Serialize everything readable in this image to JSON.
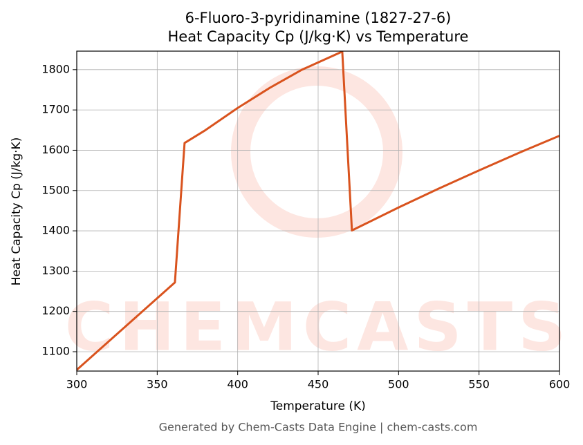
{
  "chart_data": {
    "type": "line",
    "title": [
      "6-Fluoro-3-pyridinamine (1827-27-6)",
      "Heat Capacity Cp (J/kg·K) vs Temperature"
    ],
    "x_label": "Temperature (K)",
    "y_label": "Heat Capacity Cp (J/kg·K)",
    "footer": "Generated by Chem-Casts Data Engine | chem-casts.com",
    "watermark": "CHEMCASTS",
    "series": [
      {
        "name": "Cp",
        "color": "#d9531e",
        "x": [
          300,
          361,
          367,
          380,
          400,
          420,
          440,
          465,
          471,
          500,
          525,
          550,
          575,
          600
        ],
        "values": [
          1055,
          1272,
          1618,
          1650,
          1705,
          1755,
          1800,
          1845,
          1401,
          1458,
          1505,
          1550,
          1594,
          1636
        ]
      }
    ],
    "xlim": [
      300,
      600
    ],
    "xticks": [
      300,
      350,
      400,
      450,
      500,
      550,
      600
    ],
    "ylim": [
      1052,
      1846
    ],
    "yticks": [
      1100,
      1200,
      1300,
      1400,
      1500,
      1600,
      1700,
      1800
    ],
    "grid": true
  }
}
